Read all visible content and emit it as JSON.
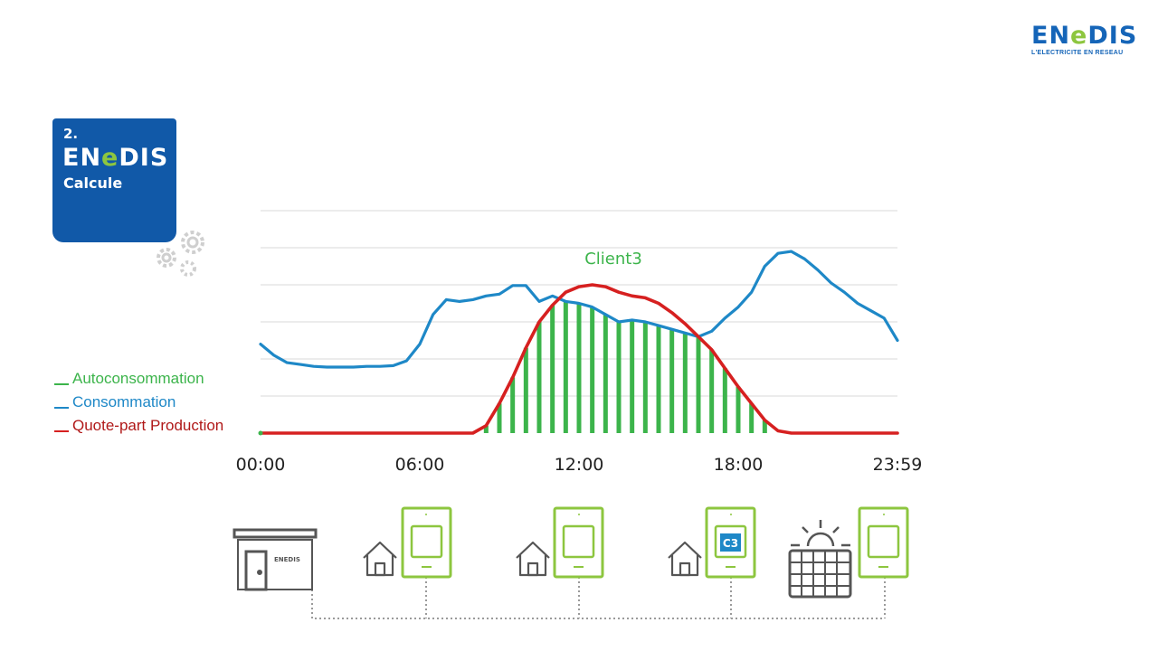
{
  "brand": {
    "name_prefix": "EN",
    "name_mid": "e",
    "name_suffix": "DIS",
    "tagline": "L'ELECTRICITE EN RESEAU",
    "blue": "#1565b8",
    "green": "#8dc63f"
  },
  "step": {
    "number": "2.",
    "logo_prefix": "EN",
    "logo_mid": "e",
    "logo_suffix": "DIS",
    "word": "Calcule"
  },
  "legend": [
    {
      "label": "Autoconsommation",
      "color": "#3cb44b"
    },
    {
      "label": "Consommation",
      "color": "#1e88c7"
    },
    {
      "label": "Quote-part Production",
      "color": "#d62020"
    }
  ],
  "meter_label": "C3",
  "chart_data": {
    "type": "line",
    "title": "Client3",
    "xlabel": "",
    "ylabel": "",
    "x_ticks": [
      "00:00",
      "06:00",
      "12:00",
      "18:00",
      "23:59"
    ],
    "x_range_hours": [
      0,
      24
    ],
    "ylim": [
      0,
      6
    ],
    "grid": true,
    "legend_placement": "left",
    "series": [
      {
        "name": "Consommation",
        "color": "#1e88c7",
        "x": [
          0,
          0.5,
          1,
          1.5,
          2,
          2.5,
          3,
          3.5,
          4,
          4.5,
          5,
          5.5,
          6,
          6.5,
          7,
          7.5,
          8,
          8.5,
          9,
          9.5,
          10,
          10.5,
          11,
          11.5,
          12,
          12.5,
          13,
          13.5,
          14,
          14.5,
          15,
          15.5,
          16,
          16.5,
          17,
          17.5,
          18,
          18.5,
          19,
          19.5,
          20,
          20.5,
          21,
          21.5,
          22,
          22.5,
          23,
          23.5,
          24
        ],
        "values": [
          2.4,
          2.1,
          1.9,
          1.85,
          1.8,
          1.78,
          1.78,
          1.78,
          1.8,
          1.8,
          1.82,
          1.95,
          2.4,
          3.2,
          3.6,
          3.55,
          3.6,
          3.7,
          3.75,
          3.98,
          3.98,
          3.55,
          3.7,
          3.55,
          3.5,
          3.4,
          3.2,
          3.0,
          3.05,
          3.0,
          2.9,
          2.8,
          2.7,
          2.6,
          2.75,
          3.1,
          3.4,
          3.8,
          4.5,
          4.85,
          4.9,
          4.7,
          4.4,
          4.05,
          3.8,
          3.5,
          3.3,
          3.1,
          2.5
        ]
      },
      {
        "name": "Quote-part Production",
        "color": "#d62020",
        "x": [
          0,
          1,
          2,
          3,
          4,
          5,
          6,
          6.5,
          7,
          7.5,
          8,
          8.5,
          9,
          9.5,
          10,
          10.5,
          11,
          11.5,
          12,
          12.5,
          13,
          13.5,
          14,
          14.5,
          15,
          15.5,
          16,
          16.5,
          17,
          17.5,
          18,
          18.5,
          19,
          19.5,
          20,
          21,
          22,
          23,
          24
        ],
        "values": [
          0,
          0,
          0,
          0,
          0,
          0,
          0,
          0,
          0,
          0,
          0,
          0.2,
          0.8,
          1.5,
          2.3,
          3.0,
          3.45,
          3.8,
          3.95,
          4.0,
          3.95,
          3.8,
          3.7,
          3.65,
          3.5,
          3.25,
          2.95,
          2.6,
          2.25,
          1.75,
          1.25,
          0.8,
          0.35,
          0.06,
          0,
          0,
          0,
          0,
          0
        ]
      },
      {
        "name": "Autoconsommation",
        "color": "#3cb44b",
        "x": [
          8.5,
          9,
          9.5,
          10,
          10.5,
          11,
          11.5,
          12,
          12.5,
          13,
          13.5,
          14,
          14.5,
          15,
          15.5,
          16,
          16.5,
          17,
          17.5,
          18,
          18.5,
          19
        ],
        "values": [
          0.2,
          0.8,
          1.5,
          2.3,
          3.0,
          3.45,
          3.55,
          3.5,
          3.4,
          3.2,
          3.0,
          3.05,
          3.0,
          2.9,
          2.8,
          2.7,
          2.6,
          2.25,
          1.75,
          1.25,
          0.8,
          0.35
        ]
      }
    ]
  }
}
